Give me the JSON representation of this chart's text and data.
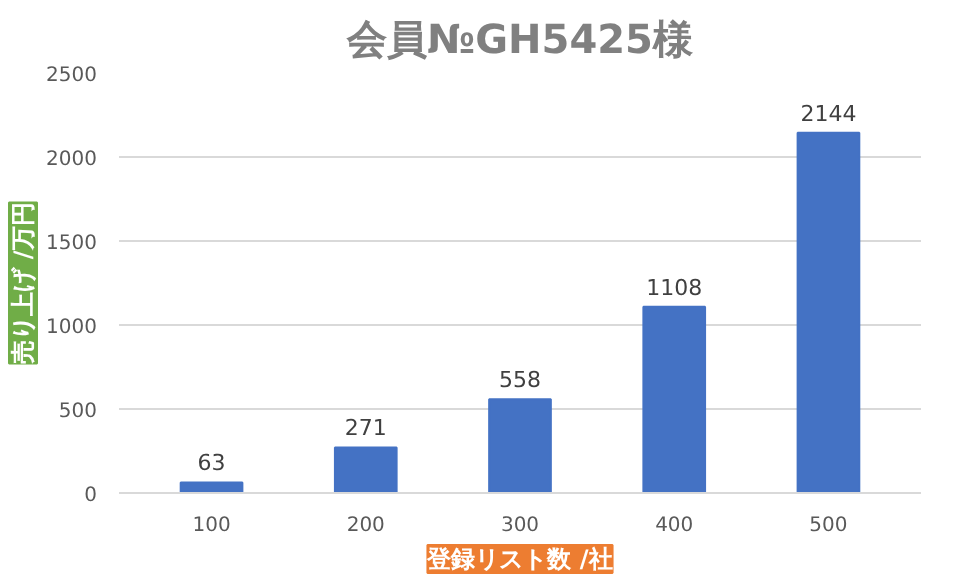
{
  "chart_data": {
    "type": "bar",
    "title": "会員№GH5425様",
    "xlabel": "登録リスト数 /社",
    "ylabel": "売り上げ /万円",
    "categories": [
      "100",
      "200",
      "300",
      "400",
      "500"
    ],
    "values": [
      63,
      271,
      558,
      1108,
      2144
    ],
    "color": "#4472c4",
    "ylim": [
      0,
      2500
    ],
    "yticks": [
      0,
      500,
      1000,
      1500,
      2000,
      2500
    ],
    "grid": "y",
    "data_labels": true
  }
}
